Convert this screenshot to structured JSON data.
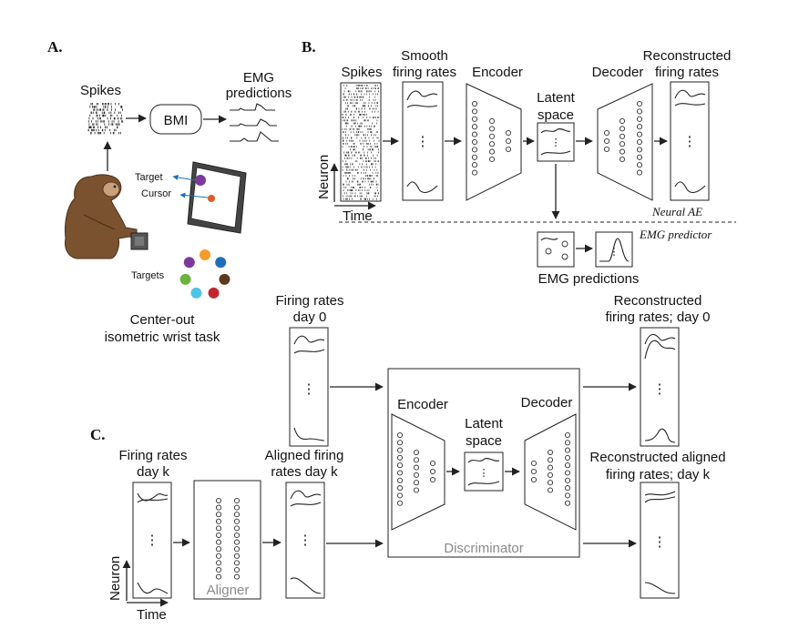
{
  "panel_a": {
    "label": "A.",
    "spikes": "Spikes",
    "bmi": "BMI",
    "emg_line1": "EMG",
    "emg_line2": "predictions",
    "target": "Target",
    "cursor": "Cursor",
    "targets": "Targets",
    "task_line1": "Center-out",
    "task_line2": "isometric wrist task",
    "target_colors": [
      "#f39c2b",
      "#1f6fb8",
      "#5a3a20",
      "#c0282d",
      "#4fc3e8",
      "#6cb33f",
      "#7a3a9a"
    ],
    "cursor_color": "#e05a2b",
    "arrow_color": "#1f6fb8"
  },
  "panel_b": {
    "label": "B.",
    "spikes": "Spikes",
    "smooth1": "Smooth",
    "smooth2": "firing rates",
    "encoder": "Encoder",
    "latent1": "Latent",
    "latent2": "space",
    "decoder": "Decoder",
    "recon1": "Reconstructed",
    "recon2": "firing rates",
    "neuron": "Neuron",
    "time": "Time",
    "neural_ae": "Neural AE",
    "emg_predictor": "EMG predictor",
    "emg_predictions": "EMG predictions"
  },
  "panel_c": {
    "label": "C.",
    "fr0_line1": "Firing rates",
    "fr0_line2": "day 0",
    "frk_line1": "Firing rates",
    "frk_line2": "day k",
    "aligned_line1": "Aligned firing",
    "aligned_line2": "rates day k",
    "aligner": "Aligner",
    "encoder": "Encoder",
    "latent1": "Latent",
    "latent2": "space",
    "decoder": "Decoder",
    "discriminator": "Discriminator",
    "recon0_line1": "Reconstructed",
    "recon0_line2": "firing rates; day 0",
    "reconk_line1": "Reconstructed aligned",
    "reconk_line2": "firing rates; day k",
    "neuron": "Neuron",
    "time": "Time"
  }
}
